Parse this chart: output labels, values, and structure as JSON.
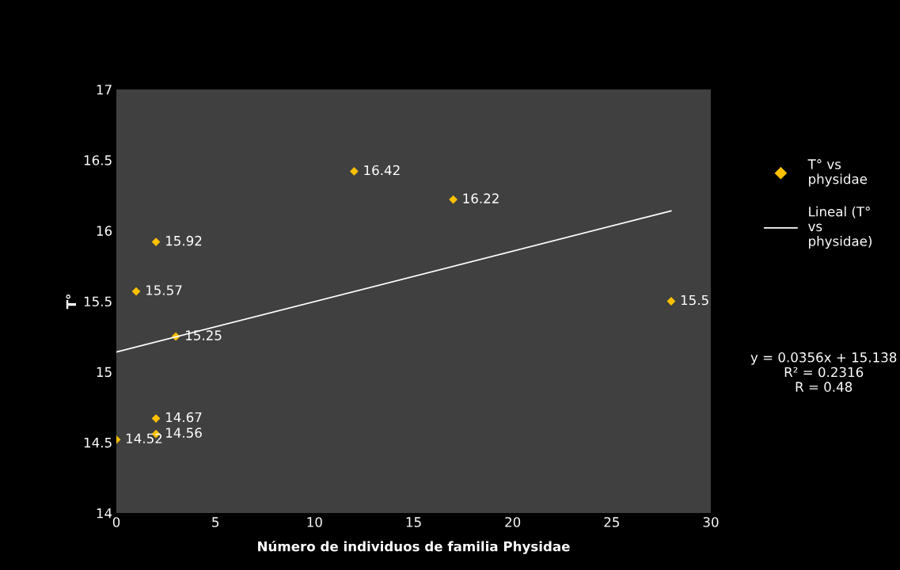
{
  "chart_data": {
    "type": "scatter",
    "xlabel": "Número de individuos de familia Physidae",
    "ylabel": "T°",
    "xlim": [
      0,
      30
    ],
    "xticks": [
      0,
      5,
      10,
      15,
      20,
      25,
      30
    ],
    "ylim": [
      14,
      17
    ],
    "yticks": [
      14,
      14.5,
      15,
      15.5,
      16,
      16.5,
      17
    ],
    "grid": false,
    "legend": "right",
    "series": [
      {
        "name": "T° vs\nphysidae",
        "marker": "diamond",
        "data_labels": true,
        "color": "#ffc000",
        "x": [
          0,
          1,
          2,
          2,
          2,
          3,
          12,
          17,
          28
        ],
        "values": [
          14.52,
          15.57,
          15.92,
          14.67,
          14.56,
          15.25,
          16.42,
          16.22,
          15.5
        ]
      },
      {
        "name": "Lineal (T°\nvs\nphysidae)",
        "type": "line",
        "color": "#ffffff",
        "x": [
          0,
          28
        ],
        "values": [
          15.14,
          16.14
        ]
      }
    ],
    "annotations": [
      "y = 0.0356x + 15.138\nR² = 0.2316\nR = 0.48"
    ]
  }
}
